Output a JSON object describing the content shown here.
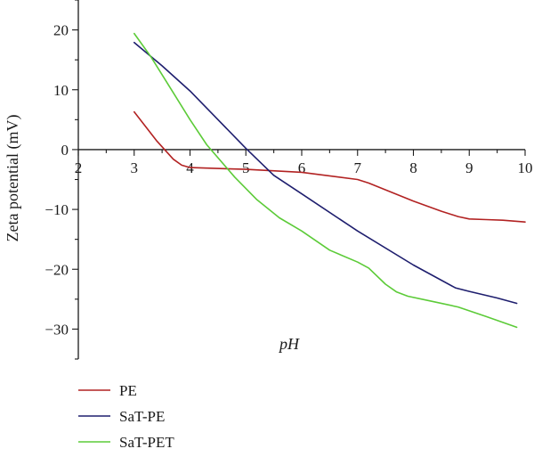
{
  "chart_data": {
    "type": "line",
    "xlabel": "pH",
    "ylabel": "Zeta potential (mV)",
    "xlim": [
      2,
      10
    ],
    "ylim": [
      -35,
      25
    ],
    "xticks": [
      2,
      3,
      4,
      5,
      6,
      7,
      8,
      9,
      10
    ],
    "xtick_labels": [
      "2",
      "3",
      "4",
      "5",
      "6",
      "7",
      "8",
      "9",
      "10"
    ],
    "yticks": [
      -30,
      -20,
      -10,
      0,
      10,
      20
    ],
    "ytick_labels": [
      "−30",
      "−20",
      "−10",
      "0",
      "10",
      "20"
    ],
    "grid": false,
    "legend_position": "bottom-left",
    "series": [
      {
        "name": "PE",
        "color": "#b22222",
        "x": [
          3.0,
          3.4,
          3.7,
          3.85,
          4.0,
          4.3,
          5.0,
          6.0,
          7.0,
          7.2,
          8.0,
          8.5,
          8.8,
          9.0,
          9.3,
          9.6,
          10.0
        ],
        "y": [
          6.3,
          1.5,
          -1.6,
          -2.6,
          -3.0,
          -3.1,
          -3.3,
          -3.8,
          -5.0,
          -5.6,
          -8.6,
          -10.3,
          -11.2,
          -11.6,
          -11.7,
          -11.8,
          -12.1
        ]
      },
      {
        "name": "SaT-PE",
        "color": "#1e1e6e",
        "x": [
          3.0,
          3.5,
          4.0,
          4.5,
          5.0,
          5.5,
          6.0,
          7.0,
          8.0,
          8.75,
          9.0,
          9.5,
          9.85
        ],
        "y": [
          17.9,
          14.0,
          9.8,
          5.0,
          0.2,
          -4.3,
          -7.4,
          -13.6,
          -19.3,
          -23.1,
          -23.7,
          -24.8,
          -25.7
        ]
      },
      {
        "name": "SaT-PET",
        "color": "#5ccb38",
        "x": [
          3.0,
          3.3,
          3.7,
          4.0,
          4.3,
          4.8,
          5.2,
          5.6,
          6.0,
          6.5,
          7.0,
          7.2,
          7.5,
          7.7,
          7.9,
          8.3,
          8.8,
          9.3,
          9.85
        ],
        "y": [
          19.4,
          15.5,
          9.5,
          5.0,
          0.8,
          -4.6,
          -8.4,
          -11.4,
          -13.6,
          -16.8,
          -18.8,
          -19.8,
          -22.5,
          -23.8,
          -24.5,
          -25.3,
          -26.3,
          -27.9,
          -29.7
        ]
      }
    ]
  }
}
